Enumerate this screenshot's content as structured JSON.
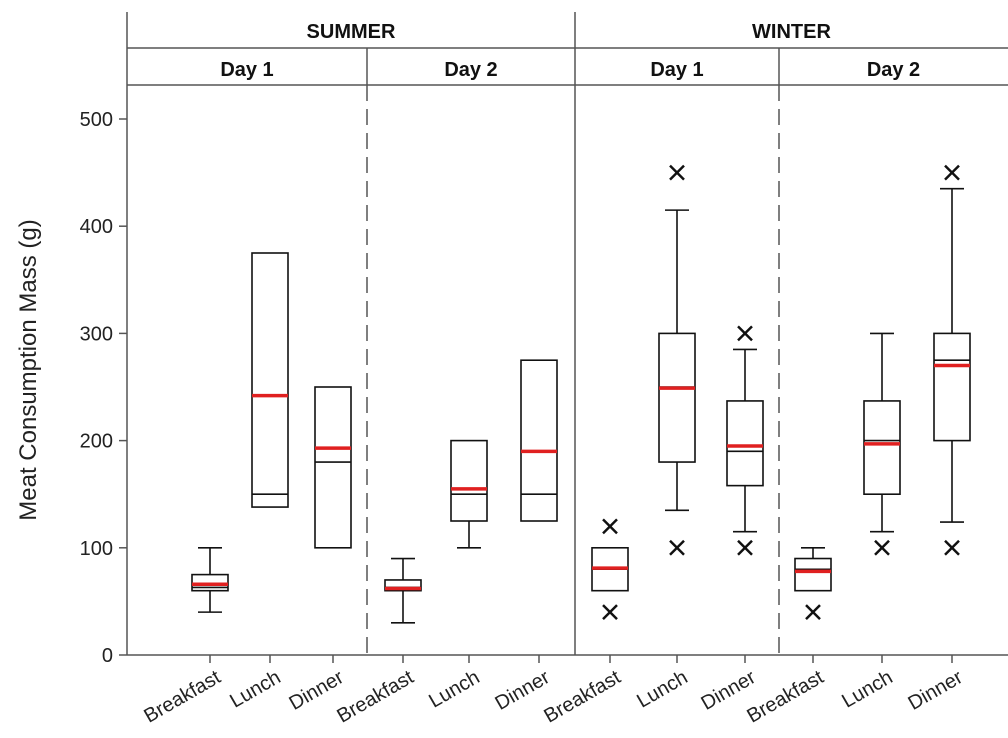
{
  "chart_data": {
    "type": "box",
    "ylabel": "Meat Consumption Mass (g)",
    "ylim": [
      0,
      530
    ],
    "yticks": [
      0,
      100,
      200,
      300,
      400,
      500
    ],
    "seasons": [
      "SUMMER",
      "WINTER"
    ],
    "days": [
      "Day 1",
      "Day 2"
    ],
    "categories": [
      "Breakfast",
      "Lunch",
      "Dinner"
    ],
    "colors": {
      "mean": "#e02020",
      "box": "#111111"
    },
    "groups": [
      {
        "season": "SUMMER",
        "day": "Day 1",
        "boxes": [
          {
            "category": "Breakfast",
            "whisker_low": 40,
            "q1": 60,
            "median": 63,
            "q3": 75,
            "whisker_high": 100,
            "mean": 66,
            "outliers": []
          },
          {
            "category": "Lunch",
            "whisker_low": 138,
            "q1": 138,
            "median": 150,
            "q3": 375,
            "whisker_high": 375,
            "mean": 242,
            "outliers": []
          },
          {
            "category": "Dinner",
            "whisker_low": 100,
            "q1": 100,
            "median": 180,
            "q3": 250,
            "whisker_high": 250,
            "mean": 193,
            "outliers": []
          }
        ]
      },
      {
        "season": "SUMMER",
        "day": "Day 2",
        "boxes": [
          {
            "category": "Breakfast",
            "whisker_low": 30,
            "q1": 60,
            "median": 63,
            "q3": 70,
            "whisker_high": 90,
            "mean": 62,
            "outliers": []
          },
          {
            "category": "Lunch",
            "whisker_low": 100,
            "q1": 125,
            "median": 150,
            "q3": 200,
            "whisker_high": 200,
            "mean": 155,
            "outliers": []
          },
          {
            "category": "Dinner",
            "whisker_low": 125,
            "q1": 125,
            "median": 150,
            "q3": 275,
            "whisker_high": 275,
            "mean": 190,
            "outliers": []
          }
        ]
      },
      {
        "season": "WINTER",
        "day": "Day 1",
        "boxes": [
          {
            "category": "Breakfast",
            "whisker_low": 60,
            "q1": 60,
            "median": 80,
            "q3": 100,
            "whisker_high": 100,
            "mean": 81,
            "outliers": [
              40,
              120
            ]
          },
          {
            "category": "Lunch",
            "whisker_low": 135,
            "q1": 180,
            "median": 250,
            "q3": 300,
            "whisker_high": 415,
            "mean": 249,
            "outliers": [
              100,
              450
            ]
          },
          {
            "category": "Dinner",
            "whisker_low": 115,
            "q1": 158,
            "median": 190,
            "q3": 237,
            "whisker_high": 285,
            "mean": 195,
            "outliers": [
              100,
              300
            ]
          }
        ]
      },
      {
        "season": "WINTER",
        "day": "Day 2",
        "boxes": [
          {
            "category": "Breakfast",
            "whisker_low": 60,
            "q1": 60,
            "median": 80,
            "q3": 90,
            "whisker_high": 100,
            "mean": 78,
            "outliers": [
              40
            ]
          },
          {
            "category": "Lunch",
            "whisker_low": 115,
            "q1": 150,
            "median": 200,
            "q3": 237,
            "whisker_high": 300,
            "mean": 197,
            "outliers": [
              100
            ]
          },
          {
            "category": "Dinner",
            "whisker_low": 124,
            "q1": 200,
            "median": 275,
            "q3": 300,
            "whisker_high": 435,
            "mean": 270,
            "outliers": [
              100,
              450
            ]
          }
        ]
      }
    ]
  }
}
